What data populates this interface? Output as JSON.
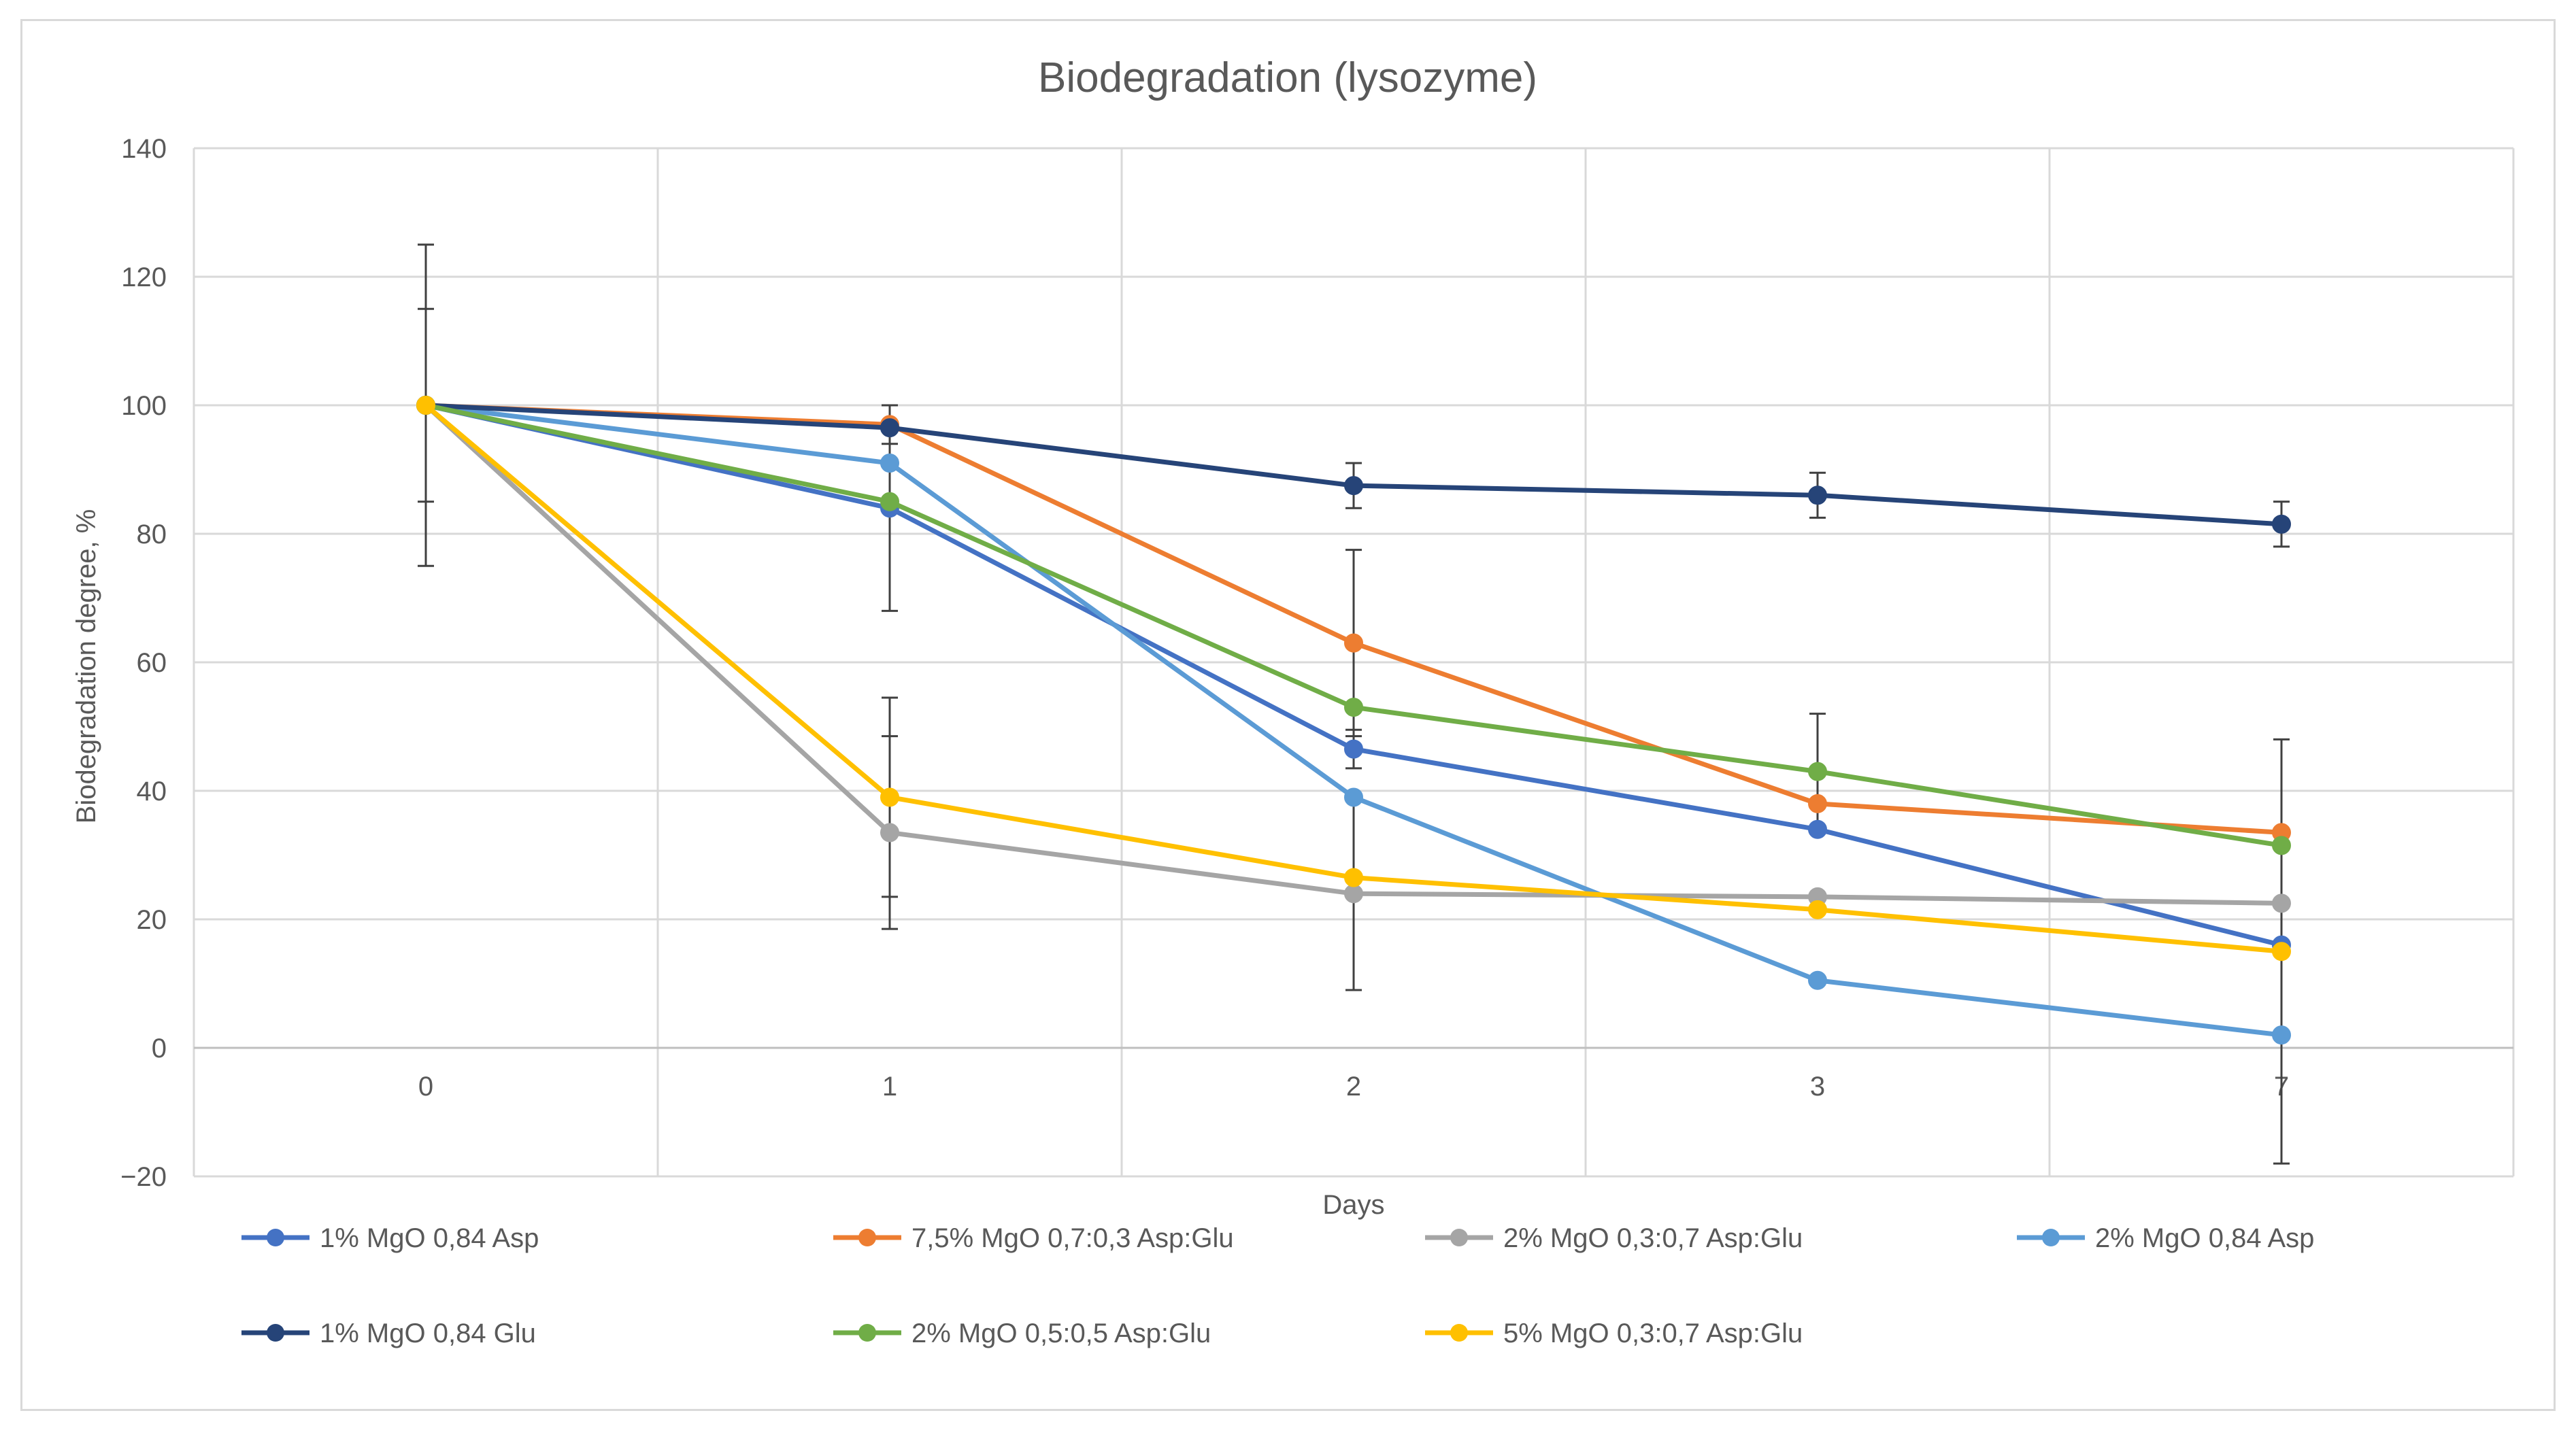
{
  "chart_data": {
    "type": "line",
    "title": "Biodegradation (lysozyme)",
    "xlabel": "Days",
    "ylabel": "Biodegradation degree, %",
    "categories": [
      "0",
      "1",
      "2",
      "3",
      "7"
    ],
    "ylim": [
      -20,
      140
    ],
    "yticks": [
      -20,
      0,
      20,
      40,
      60,
      80,
      100,
      120,
      140
    ],
    "ytick_labels": [
      "−20",
      "0",
      "20",
      "40",
      "60",
      "80",
      "100",
      "120",
      "140"
    ],
    "grid": true,
    "legend_position": "bottom",
    "series": [
      {
        "name": "1% MgO 0,84 Asp",
        "color": "#4472C4",
        "values": [
          100,
          84,
          46.5,
          34,
          16
        ],
        "errors": [
          15,
          16,
          3,
          0,
          0
        ]
      },
      {
        "name": "7,5% MgO 0,7:0,3 Asp:Glu",
        "color": "#ED7D31",
        "values": [
          100,
          97,
          63,
          38,
          33.5
        ],
        "errors": [
          0,
          3,
          14.5,
          0,
          0
        ]
      },
      {
        "name": "2% MgO 0,3:0,7 Asp:Glu",
        "color": "#A5A5A5",
        "values": [
          100,
          33.5,
          24,
          23.5,
          22.5
        ],
        "errors": [
          0,
          15,
          15,
          0,
          0
        ]
      },
      {
        "name": "2% MgO 0,84 Asp",
        "color": "#5B9BD5",
        "values": [
          100,
          91,
          39,
          10.5,
          2
        ],
        "errors": [
          0,
          0,
          0,
          0,
          0
        ]
      },
      {
        "name": "1% MgO 0,84 Glu",
        "color": "#264478",
        "values": [
          100,
          96.5,
          87.5,
          86,
          81.5
        ],
        "errors": [
          0,
          0,
          3.5,
          3.5,
          3.5
        ]
      },
      {
        "name": "2% MgO 0,5:0,5 Asp:Glu",
        "color": "#70AD47",
        "values": [
          100,
          85,
          53,
          43,
          31.5
        ],
        "errors": [
          0,
          0,
          0,
          9,
          0
        ]
      },
      {
        "name": "5% MgO 0,3:0,7 Asp:Glu",
        "color": "#FFC000",
        "values": [
          100,
          39,
          26.5,
          21.5,
          15
        ],
        "errors": [
          25,
          15.5,
          0,
          0,
          33
        ]
      }
    ]
  }
}
